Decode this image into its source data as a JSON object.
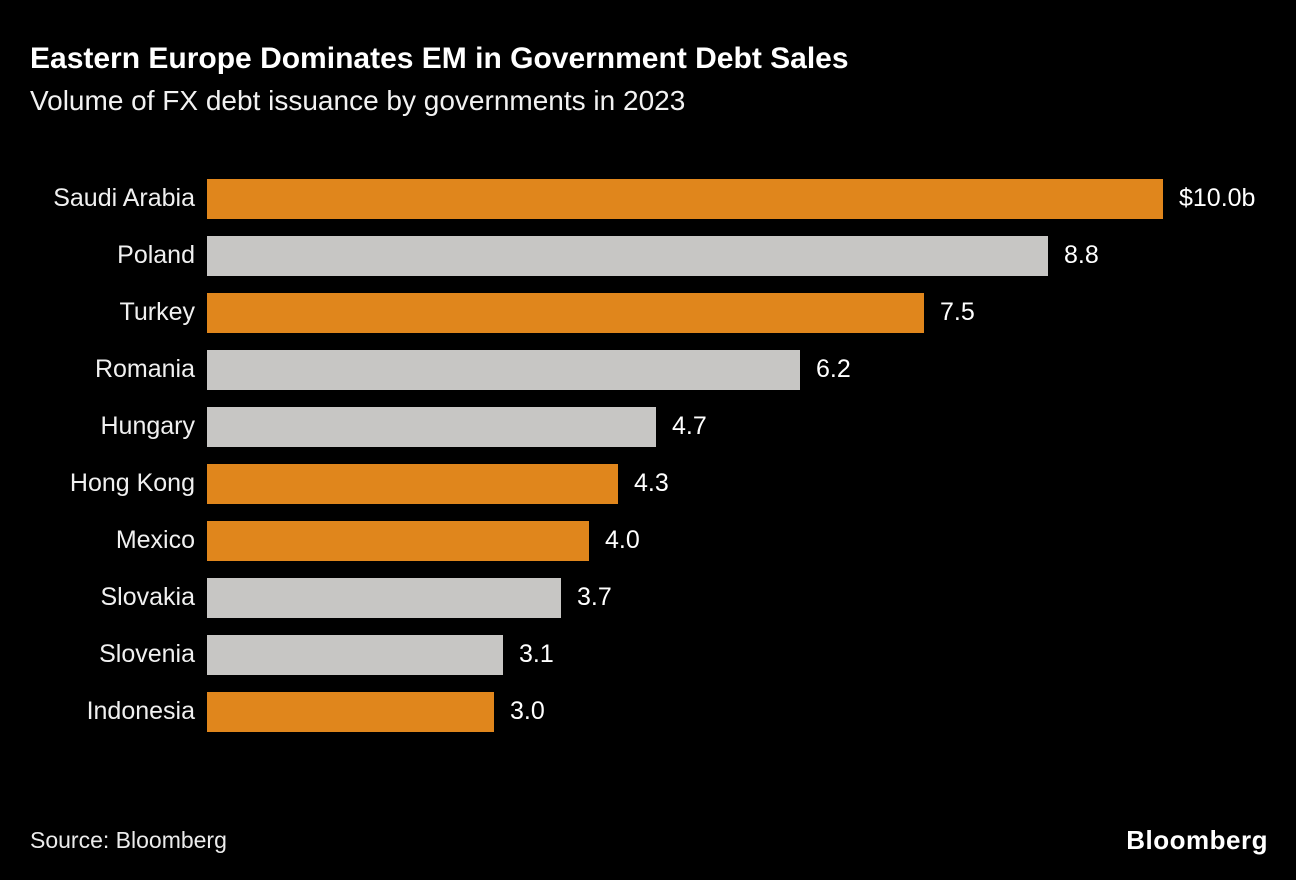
{
  "header": {
    "title": "Eastern Europe Dominates EM in Government Debt Sales",
    "subtitle": "Volume of FX debt issuance by governments in 2023"
  },
  "footer": {
    "source": "Source: Bloomberg",
    "logo": "Bloomberg"
  },
  "colors": {
    "background": "#000000",
    "orange": "#E0861C",
    "gray": "#C7C6C4",
    "text": "#FFFFFF"
  },
  "chart_data": {
    "type": "bar",
    "orientation": "horizontal",
    "title": "Eastern Europe Dominates EM in Government Debt Sales",
    "subtitle": "Volume of FX debt issuance by governments in 2023",
    "xlabel": "",
    "ylabel": "",
    "xlim": [
      0,
      10
    ],
    "grid": false,
    "legend": "none",
    "categories": [
      "Saudi Arabia",
      "Poland",
      "Turkey",
      "Romania",
      "Hungary",
      "Hong Kong",
      "Mexico",
      "Slovakia",
      "Slovenia",
      "Indonesia"
    ],
    "values": [
      10.0,
      8.8,
      7.5,
      6.2,
      4.7,
      4.3,
      4.0,
      3.7,
      3.1,
      3.0
    ],
    "value_labels": [
      "$10.0b",
      "8.8",
      "7.5",
      "6.2",
      "4.7",
      "4.3",
      "4.0",
      "3.7",
      "3.1",
      "3.0"
    ],
    "bar_colors": [
      "orange",
      "gray",
      "orange",
      "gray",
      "gray",
      "orange",
      "orange",
      "gray",
      "gray",
      "orange"
    ]
  }
}
